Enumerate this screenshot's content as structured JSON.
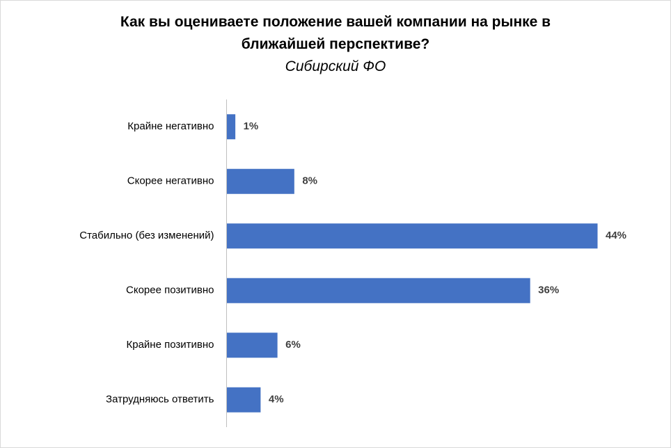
{
  "chart_data": {
    "type": "bar",
    "orientation": "horizontal",
    "title": "Как вы оцениваете положение вашей компании на рынке в ближайшей перспективе?",
    "subtitle": "Сибирский ФО",
    "categories": [
      "Крайне негативно",
      "Скорее негативно",
      "Стабильно (без изменений)",
      "Скорее позитивно",
      "Крайне позитивно",
      "Затрудняюсь ответить"
    ],
    "values": [
      1,
      8,
      44,
      36,
      6,
      4
    ],
    "value_labels": [
      "1%",
      "8%",
      "44%",
      "36%",
      "6%",
      "4%"
    ],
    "unit": "%",
    "xlim": [
      0,
      44
    ],
    "grid": false,
    "legend": "none",
    "bar_color": "#4472c4"
  }
}
